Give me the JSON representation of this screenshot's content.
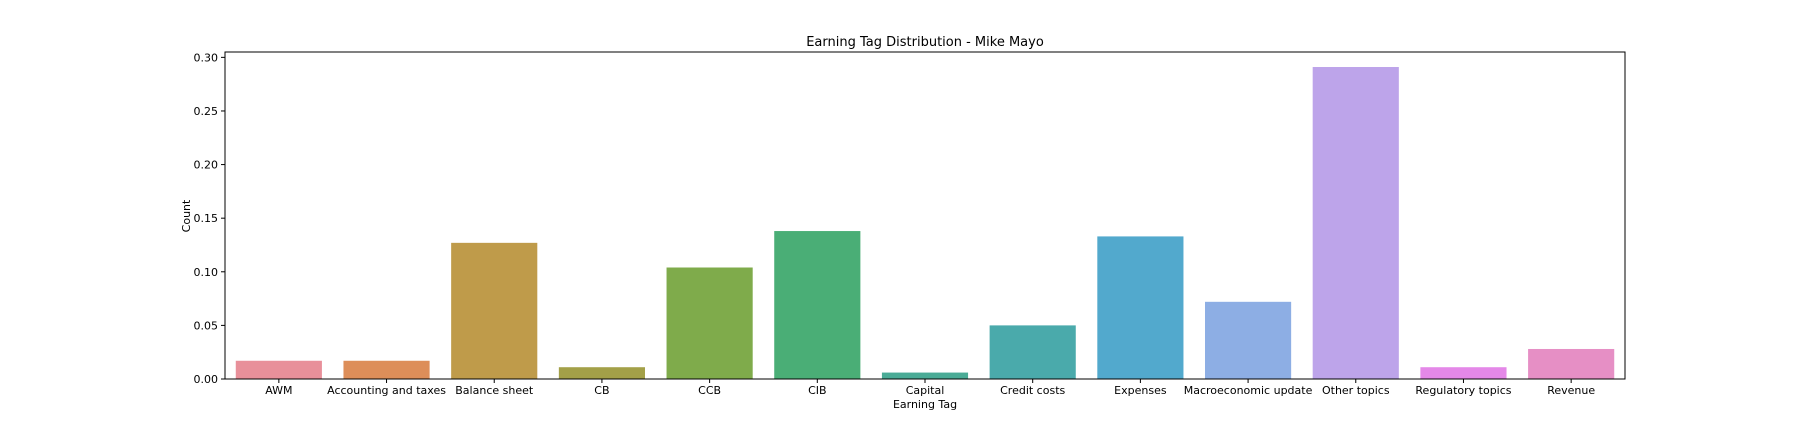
{
  "chart_data": {
    "type": "bar",
    "title": "Earning Tag Distribution - Mike Mayo",
    "xlabel": "Earning Tag",
    "ylabel": "Count",
    "ylim": [
      0,
      0.305
    ],
    "yticks": [
      "0.00",
      "0.05",
      "0.10",
      "0.15",
      "0.20",
      "0.25",
      "0.30"
    ],
    "categories": [
      "AWM",
      "Accounting and taxes",
      "Balance sheet",
      "CB",
      "CCB",
      "CIB",
      "Capital",
      "Credit costs",
      "Expenses",
      "Macroeconomic update",
      "Other topics",
      "Regulatory topics",
      "Revenue"
    ],
    "values": [
      0.017,
      0.017,
      0.127,
      0.011,
      0.104,
      0.138,
      0.006,
      0.05,
      0.133,
      0.072,
      0.291,
      0.011,
      0.028
    ],
    "colors": [
      "#e8909a",
      "#dd8e59",
      "#bf9b4a",
      "#a3a048",
      "#7fab4b",
      "#4aae76",
      "#4aab96",
      "#4aaaab",
      "#52a9cd",
      "#8daee4",
      "#bda4ea",
      "#e488e8",
      "#e68fc5"
    ],
    "grid": false,
    "legend": "none"
  }
}
